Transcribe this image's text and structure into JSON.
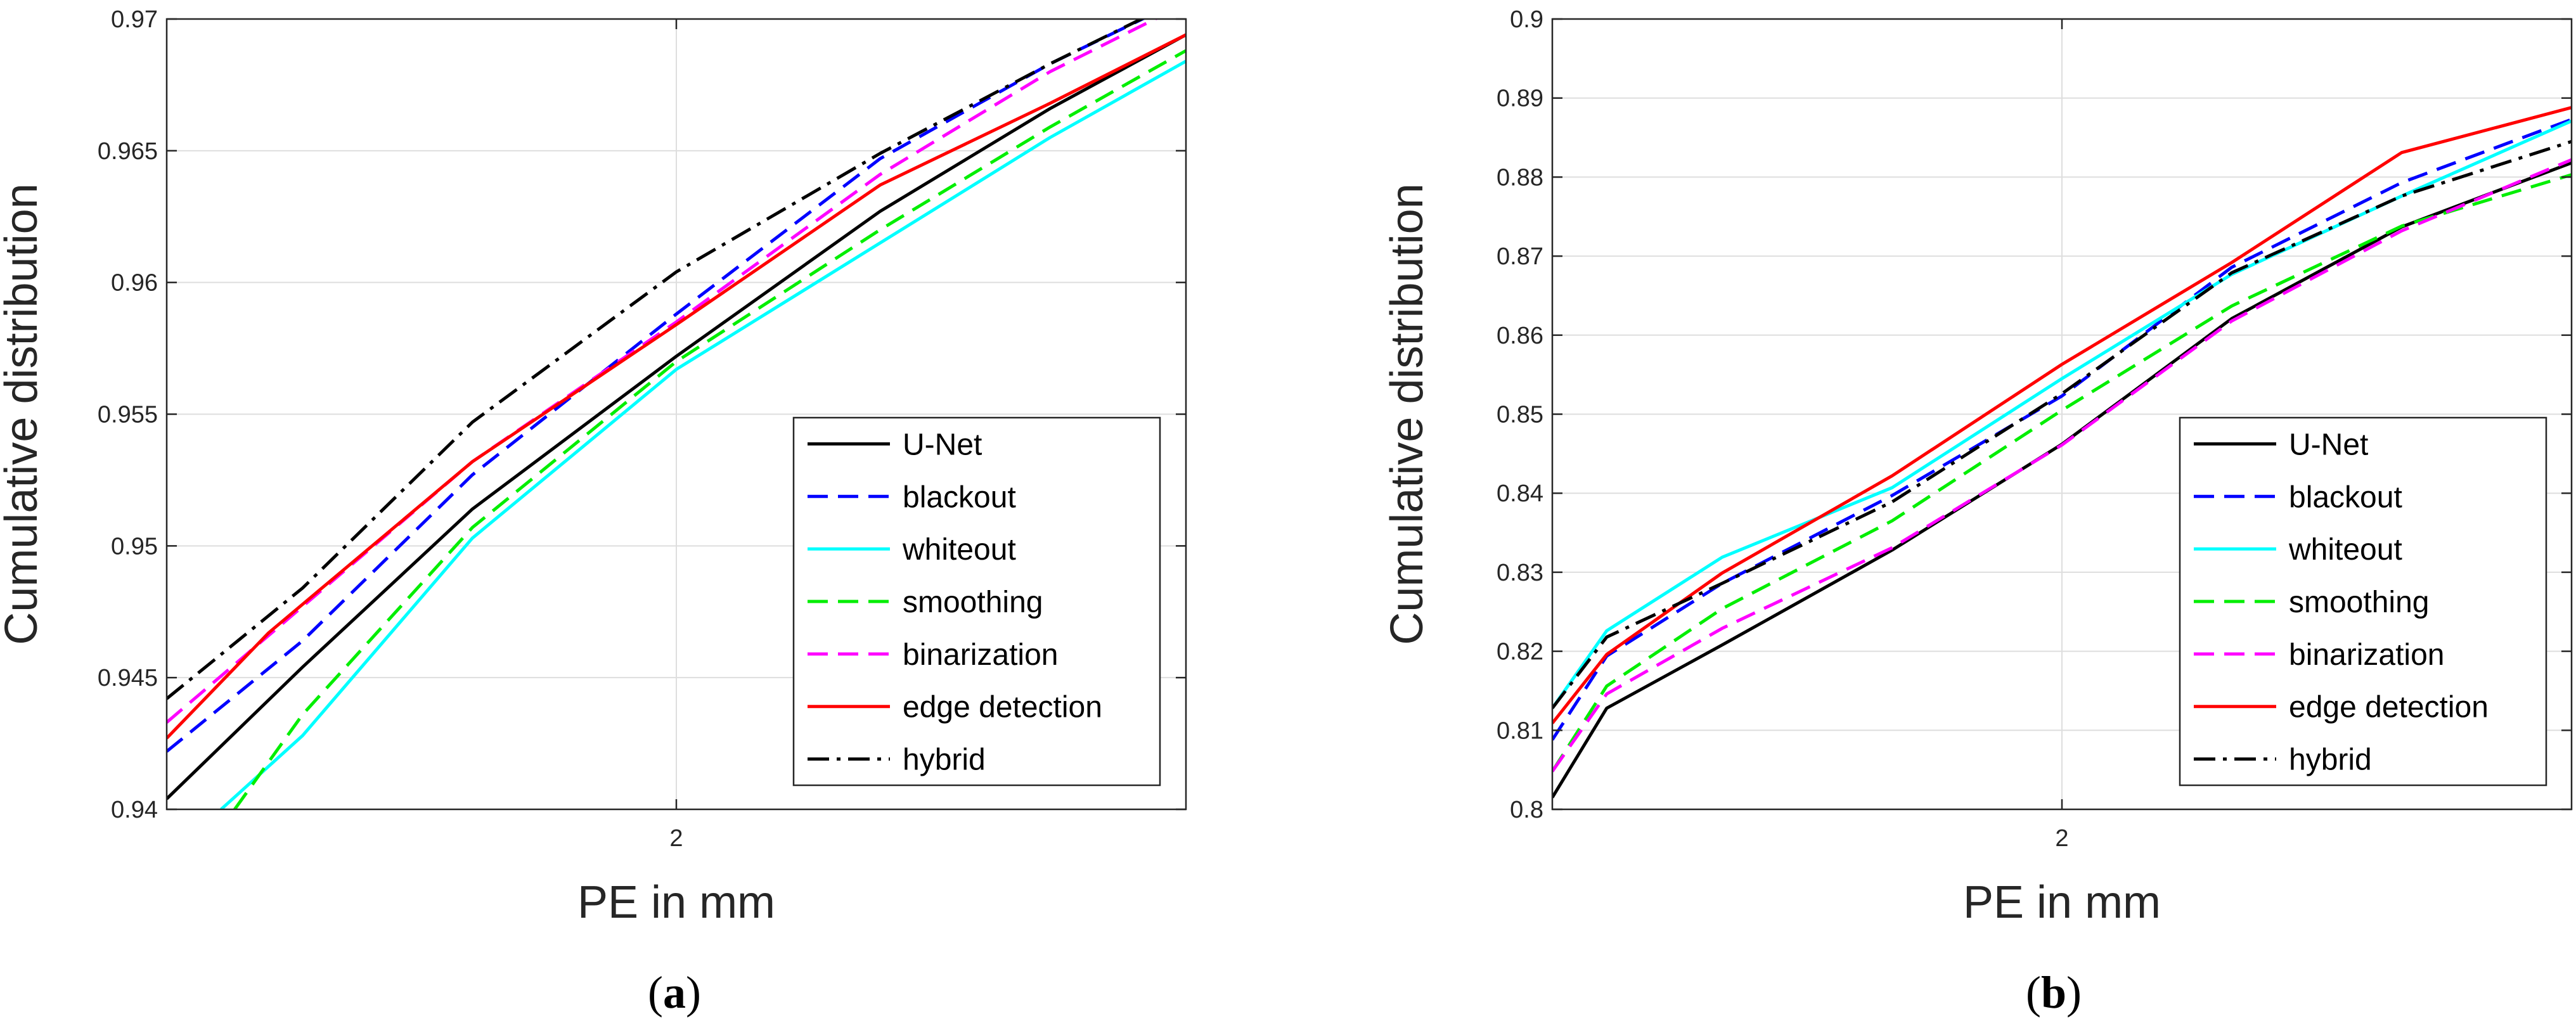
{
  "figure": {
    "panels": [
      {
        "caption_open": "(",
        "caption_letter": "a",
        "caption_close": ")"
      },
      {
        "caption_open": "(",
        "caption_letter": "b",
        "caption_close": ")"
      }
    ]
  },
  "chart_data": [
    {
      "type": "line",
      "xlabel": "PE in mm",
      "ylabel": "Cumulative distribution",
      "xlim": [
        1.25,
        2.75
      ],
      "ylim": [
        0.94,
        0.97
      ],
      "xticks": [
        {
          "value": 2,
          "label": "2"
        }
      ],
      "yticks": [
        {
          "value": 0.94,
          "label": "0.94"
        },
        {
          "value": 0.945,
          "label": "0.945"
        },
        {
          "value": 0.95,
          "label": "0.95"
        },
        {
          "value": 0.955,
          "label": "0.955"
        },
        {
          "value": 0.96,
          "label": "0.96"
        },
        {
          "value": 0.965,
          "label": "0.965"
        },
        {
          "value": 0.97,
          "label": "0.97"
        }
      ],
      "grid": true,
      "legend_position": "bottom-right",
      "series": [
        {
          "name": "U-Net",
          "color": "#000000",
          "style": "solid",
          "x": [
            1.25,
            1.45,
            1.7,
            2.0,
            2.3,
            2.55,
            2.75
          ],
          "y": [
            0.9404,
            0.9454,
            0.9514,
            0.9572,
            0.9627,
            0.9666,
            0.9694
          ]
        },
        {
          "name": "blackout",
          "color": "#0000ff",
          "style": "dashed",
          "x": [
            1.25,
            1.45,
            1.7,
            2.0,
            2.3,
            2.55,
            2.75
          ],
          "y": [
            0.9422,
            0.9464,
            0.9527,
            0.9588,
            0.9647,
            0.9683,
            0.9708
          ]
        },
        {
          "name": "whiteout",
          "color": "#00ffff",
          "style": "solid",
          "x": [
            1.33,
            1.45,
            1.7,
            2.0,
            2.3,
            2.55,
            2.75
          ],
          "y": [
            0.94,
            0.9428,
            0.9503,
            0.9567,
            0.9615,
            0.9655,
            0.9684
          ]
        },
        {
          "name": "smoothing",
          "color": "#00ee00",
          "style": "dashed",
          "x": [
            1.35,
            1.45,
            1.7,
            2.0,
            2.3,
            2.55,
            2.75
          ],
          "y": [
            0.94,
            0.9436,
            0.9507,
            0.957,
            0.962,
            0.9659,
            0.9688
          ]
        },
        {
          "name": "binarization",
          "color": "#ff00ff",
          "style": "dashed",
          "x": [
            1.25,
            1.45,
            1.7,
            2.0,
            2.3,
            2.55,
            2.72
          ],
          "y": [
            0.9433,
            0.9477,
            0.9532,
            0.9585,
            0.9641,
            0.968,
            0.9702
          ]
        },
        {
          "name": "edge detection",
          "color": "#ff0000",
          "style": "solid",
          "x": [
            1.25,
            1.4,
            1.7,
            2.0,
            2.3,
            2.55,
            2.75
          ],
          "y": [
            0.9427,
            0.9467,
            0.9532,
            0.9584,
            0.9637,
            0.9668,
            0.9694
          ]
        },
        {
          "name": "hybrid",
          "color": "#000000",
          "style": "dashdot",
          "x": [
            1.25,
            1.45,
            1.7,
            2.0,
            2.3,
            2.55,
            2.7
          ],
          "y": [
            0.9442,
            0.9484,
            0.9547,
            0.9604,
            0.9649,
            0.9683,
            0.9702
          ]
        }
      ]
    },
    {
      "type": "line",
      "xlabel": "PE in mm",
      "ylabel": "Cumulative distribution",
      "xlim": [
        1.25,
        2.75
      ],
      "ylim": [
        0.8,
        0.9
      ],
      "xticks": [
        {
          "value": 2,
          "label": "2"
        }
      ],
      "yticks": [
        {
          "value": 0.8,
          "label": "0.8"
        },
        {
          "value": 0.81,
          "label": "0.81"
        },
        {
          "value": 0.82,
          "label": "0.82"
        },
        {
          "value": 0.83,
          "label": "0.83"
        },
        {
          "value": 0.84,
          "label": "0.84"
        },
        {
          "value": 0.85,
          "label": "0.85"
        },
        {
          "value": 0.86,
          "label": "0.86"
        },
        {
          "value": 0.87,
          "label": "0.87"
        },
        {
          "value": 0.88,
          "label": "0.88"
        },
        {
          "value": 0.89,
          "label": "0.89"
        },
        {
          "value": 0.9,
          "label": "0.9"
        }
      ],
      "grid": true,
      "legend_position": "bottom-right",
      "series": [
        {
          "name": "U-Net",
          "color": "#000000",
          "style": "solid",
          "x": [
            1.25,
            1.33,
            1.5,
            1.75,
            2.0,
            2.25,
            2.5,
            2.75
          ],
          "y": [
            0.8015,
            0.8128,
            0.8208,
            0.8328,
            0.8462,
            0.8621,
            0.8737,
            0.8818
          ]
        },
        {
          "name": "blackout",
          "color": "#0000ff",
          "style": "dashed",
          "x": [
            1.25,
            1.33,
            1.5,
            1.75,
            2.0,
            2.25,
            2.5,
            2.75
          ],
          "y": [
            0.8088,
            0.8194,
            0.8286,
            0.8397,
            0.8523,
            0.8686,
            0.8793,
            0.8873
          ]
        },
        {
          "name": "whiteout",
          "color": "#00ffff",
          "style": "solid",
          "x": [
            1.25,
            1.33,
            1.5,
            1.75,
            2.0,
            2.25,
            2.5,
            2.75
          ],
          "y": [
            0.8128,
            0.8226,
            0.8319,
            0.8407,
            0.8545,
            0.8677,
            0.8776,
            0.8871
          ]
        },
        {
          "name": "smoothing",
          "color": "#00ee00",
          "style": "dashed",
          "x": [
            1.25,
            1.33,
            1.5,
            1.75,
            2.0,
            2.25,
            2.5,
            2.75
          ],
          "y": [
            0.8048,
            0.8156,
            0.8254,
            0.8365,
            0.8505,
            0.8637,
            0.8738,
            0.8803
          ]
        },
        {
          "name": "binarization",
          "color": "#ff00ff",
          "style": "dashed",
          "x": [
            1.25,
            1.33,
            1.5,
            1.75,
            2.0,
            2.25,
            2.5,
            2.75
          ],
          "y": [
            0.8048,
            0.8146,
            0.8229,
            0.8331,
            0.8461,
            0.8618,
            0.8732,
            0.8822
          ]
        },
        {
          "name": "edge detection",
          "color": "#ff0000",
          "style": "solid",
          "x": [
            1.25,
            1.33,
            1.5,
            1.75,
            2.0,
            2.25,
            2.5,
            2.75
          ],
          "y": [
            0.8109,
            0.8196,
            0.8299,
            0.8422,
            0.8563,
            0.8692,
            0.8831,
            0.8888
          ]
        },
        {
          "name": "hybrid",
          "color": "#000000",
          "style": "dashdot",
          "x": [
            1.25,
            1.33,
            1.5,
            1.75,
            2.0,
            2.25,
            2.5,
            2.75
          ],
          "y": [
            0.8128,
            0.8218,
            0.8286,
            0.8389,
            0.8526,
            0.8679,
            0.8776,
            0.8845
          ]
        }
      ]
    }
  ]
}
